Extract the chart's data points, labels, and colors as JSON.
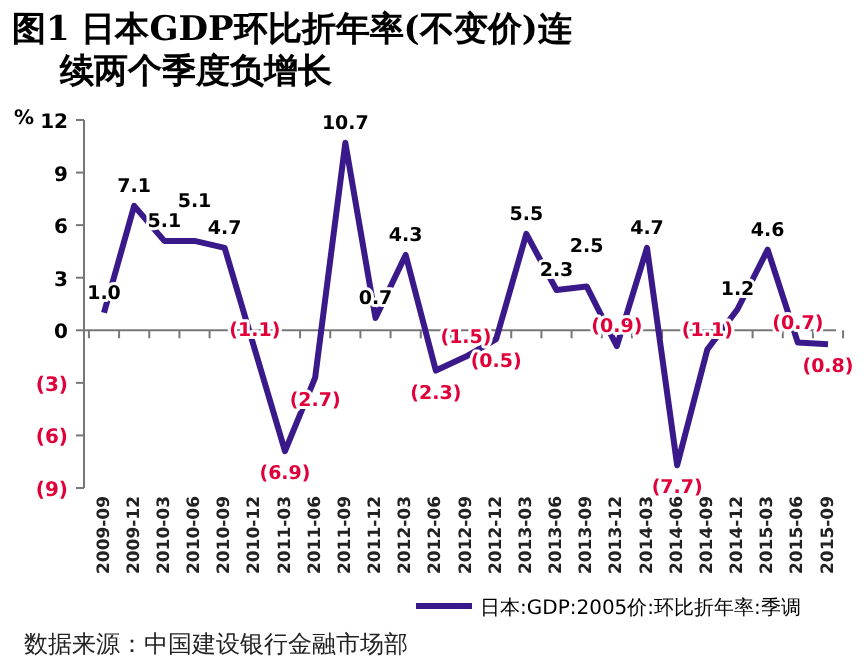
{
  "chart_data": {
    "type": "line",
    "title": "图1 日本GDP环比折年率(不变价)连续两个季度负增长",
    "ylabel": "%",
    "categories": [
      "2009-09",
      "2009-12",
      "2010-03",
      "2010-06",
      "2010-09",
      "2010-12",
      "2011-03",
      "2011-06",
      "2011-09",
      "2011-12",
      "2012-03",
      "2012-06",
      "2012-09",
      "2012-12",
      "2013-03",
      "2013-06",
      "2013-09",
      "2013-12",
      "2014-03",
      "2014-06",
      "2014-09",
      "2014-12",
      "2015-03",
      "2015-06",
      "2015-09"
    ],
    "series": [
      {
        "name": "日本:GDP:2005价:环比折年率:季调",
        "color": "#3a1a8a",
        "values": [
          1.0,
          7.1,
          5.1,
          5.1,
          4.7,
          -1.1,
          -6.9,
          -2.7,
          10.7,
          0.7,
          4.3,
          -2.3,
          -1.5,
          -0.5,
          5.5,
          2.3,
          2.5,
          -0.9,
          4.7,
          -7.7,
          -1.1,
          1.2,
          4.6,
          -0.7,
          -0.8
        ],
        "value_labels": [
          "1.0",
          "7.1",
          "5.1",
          "5.1",
          "4.7",
          "(1.1)",
          "(6.9)",
          "(2.7)",
          "10.7",
          "0.7",
          "4.3",
          "(2.3)",
          "(1.5)",
          "(0.5)",
          "5.5",
          "2.3",
          "2.5",
          "(0.9)",
          "4.7",
          "(7.7)",
          "(1.1)",
          "1.2",
          "4.6",
          "(0.7)",
          "(0.8)"
        ]
      }
    ],
    "ylim": [
      -9,
      12
    ],
    "yticks": [
      {
        "value": -9,
        "label": "(9)"
      },
      {
        "value": -6,
        "label": "(6)"
      },
      {
        "value": -3,
        "label": "(3)"
      },
      0,
      3,
      6,
      9,
      12
    ],
    "ref_lines": [
      {
        "axis": "y",
        "value": 0,
        "color": "#777777"
      }
    ],
    "legend": "bottom right",
    "grid": false,
    "marker": "none",
    "line_style": "solid",
    "annotations": [
      "数据来源：中国建设银行金融市场部"
    ]
  }
}
